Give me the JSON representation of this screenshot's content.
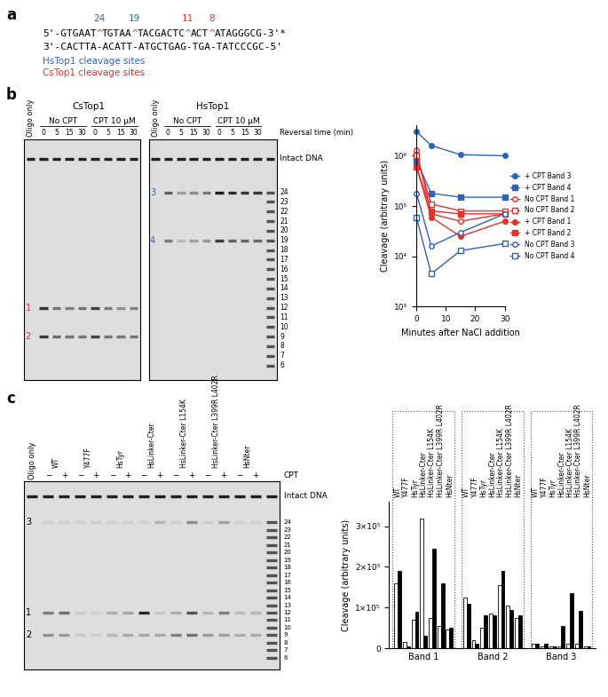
{
  "panel_labels": [
    "a",
    "b",
    "c"
  ],
  "sequence": {
    "top_strand": [
      {
        "text": "5'-GTGAAT"
      },
      {
        "text": "^",
        "site": "24",
        "color": "#2e62b8"
      },
      {
        "text": "TGTAA"
      },
      {
        "text": "^",
        "site": "19",
        "color": "#2e62b8"
      },
      {
        "text": "TACGACTC"
      },
      {
        "text": "^",
        "site": "11",
        "color": "#e3322b"
      },
      {
        "text": "ACT"
      },
      {
        "text": "^",
        "site": "8",
        "color": "#e3322b"
      },
      {
        "text": "ATAGGGCG-3'*"
      }
    ],
    "bottom_strand": "3'-CACTTA-ACATT-ATGCTGAG-TGA-TATCCCGC-5'",
    "legend": [
      {
        "text": "HsTop1 cleavage sites",
        "color": "#2e62b8"
      },
      {
        "text": "CsTop1 cleavage sites",
        "color": "#e3322b"
      }
    ]
  },
  "gel_common": {
    "ladder": [
      6,
      7,
      8,
      9,
      10,
      11,
      12,
      13,
      14,
      15,
      16,
      17,
      18,
      19,
      20,
      21,
      22,
      23,
      24
    ],
    "intact_label": "Intact DNA"
  },
  "gels": [
    {
      "panel": "b",
      "title": "CsTop1",
      "lanes": [
        "Oligo only",
        "0",
        "5",
        "15",
        "30",
        "0",
        "5",
        "15",
        "30"
      ],
      "groups": [
        {
          "label": "No CPT",
          "lanes": [
            1,
            2,
            3,
            4
          ]
        },
        {
          "label": "CPT 10 μM",
          "lanes": [
            5,
            6,
            7,
            8
          ]
        }
      ],
      "bands": [
        {
          "label": "1",
          "size": 12,
          "color": "#e3322b",
          "series": [
            "No CPT Band 1",
            "+ CPT Band 1"
          ]
        },
        {
          "label": "2",
          "size": 9,
          "color": "#e3322b",
          "series": [
            "No CPT Band 2",
            "+ CPT Band 2"
          ]
        }
      ],
      "ladder_lane": false
    },
    {
      "panel": "b",
      "title": "HsTop1",
      "lanes": [
        "Oligo only",
        "0",
        "5",
        "15",
        "30",
        "0",
        "5",
        "15",
        "30"
      ],
      "groups": [
        {
          "label": "No CPT",
          "lanes": [
            1,
            2,
            3,
            4
          ]
        },
        {
          "label": "CPT 10 μM",
          "lanes": [
            5,
            6,
            7,
            8
          ]
        }
      ],
      "bands": [
        {
          "label": "3",
          "size": 24,
          "color": "#2e62b8",
          "series": [
            "No CPT Band 3",
            "+ CPT Band 3"
          ]
        },
        {
          "label": "4",
          "size": 19,
          "color": "#2e62b8",
          "series": [
            "No CPT Band 4",
            "+ CPT Band 4"
          ]
        }
      ],
      "row_label": "Reversal time (min)",
      "ladder_lane": true
    }
  ],
  "gel_c": {
    "oligo_label": "Oligo only",
    "signs": [
      "−",
      "+"
    ],
    "row_label": "CPT",
    "bands": [
      {
        "label": "1",
        "size": 12
      },
      {
        "label": "2",
        "size": 9
      },
      {
        "label": "3",
        "size": 24
      }
    ]
  },
  "chart_data": [
    {
      "type": "line",
      "x": [
        0,
        5,
        15,
        30
      ],
      "xlim": [
        0,
        30
      ],
      "xticks": [
        0,
        10,
        20,
        30
      ],
      "log": "y",
      "ylim": [
        1000,
        4000000
      ],
      "yticks": [
        {
          "value": 1000,
          "label": "10³"
        },
        {
          "value": 10000,
          "label": "10⁴"
        },
        {
          "value": 100000,
          "label": "10⁵"
        },
        {
          "value": 1000000,
          "label": "10⁶"
        }
      ],
      "x_label": "Minutes after NaCl addition",
      "y_label": "Cleavage (arbitrary units)",
      "legend": "center left",
      "series": [
        {
          "name": "+ CPT Band 3",
          "color": "#2e62b8",
          "marker": "circle",
          "values": [
            3000000,
            1600000,
            1050000,
            1000000
          ]
        },
        {
          "name": "+ CPT Band 4",
          "color": "#2e62b8",
          "marker": "square",
          "values": [
            800000,
            180000,
            150000,
            150000
          ]
        },
        {
          "name": "No CPT Band 1",
          "color": "#e3322b",
          "marker": "open-circle",
          "values": [
            1300000,
            70000,
            50000,
            70000
          ]
        },
        {
          "name": "No CPT Band 2",
          "color": "#e3322b",
          "marker": "open-square",
          "values": [
            1000000,
            110000,
            80000,
            80000
          ]
        },
        {
          "name": "+ CPT Band 1",
          "color": "#e3322b",
          "marker": "circle",
          "values": [
            600000,
            60000,
            25000,
            50000
          ]
        },
        {
          "name": "+ CPT Band 2",
          "color": "#e3322b",
          "marker": "square",
          "values": [
            600000,
            80000,
            70000,
            70000
          ]
        },
        {
          "name": "No CPT Band 3",
          "color": "#2e62b8",
          "marker": "open-circle",
          "values": [
            180000,
            16000,
            30000,
            70000
          ]
        },
        {
          "name": "No CPT Band 4",
          "color": "#2e62b8",
          "marker": "open-square",
          "values": [
            60000,
            4500,
            13000,
            18000
          ]
        }
      ]
    },
    {
      "type": "bar",
      "categories": [
        "WT",
        "Y477F",
        "HsTyr",
        "HsLinker-Cter",
        "HsLinker-Cter L154K",
        "HsLinker-Cter L399R L402R",
        "HsNter"
      ],
      "y_label": "Cleavage (arbitrary units)",
      "ylim": [
        0,
        360000
      ],
      "yticks": [
        0,
        {
          "value": 100000,
          "label": "1×10⁵"
        },
        {
          "value": 200000,
          "label": "2×10⁵"
        },
        {
          "value": 300000,
          "label": "3×10⁵"
        }
      ],
      "groups": [
        {
          "label": "Band 1",
          "series": [
            {
              "color": "#ffffff",
              "values": [
                160000,
                15000,
                70000,
                320000,
                75000,
                55000,
                45000
              ]
            },
            {
              "color": "#000000",
              "values": [
                190000,
                5000,
                90000,
                30000,
                245000,
                160000,
                50000
              ]
            }
          ]
        },
        {
          "label": "Band 2",
          "series": [
            {
              "color": "#ffffff",
              "values": [
                125000,
                20000,
                50000,
                85000,
                155000,
                105000,
                75000
              ]
            },
            {
              "color": "#000000",
              "values": [
                110000,
                10000,
                80000,
                80000,
                190000,
                95000,
                80000
              ]
            }
          ]
        },
        {
          "label": "Band 3",
          "series": [
            {
              "color": "#ffffff",
              "values": [
                10000,
                5000,
                5000,
                5000,
                10000,
                10000,
                5000
              ]
            },
            {
              "color": "#000000",
              "values": [
                10000,
                10000,
                5000,
                55000,
                135000,
                92000,
                5000
              ]
            }
          ]
        }
      ]
    }
  ]
}
